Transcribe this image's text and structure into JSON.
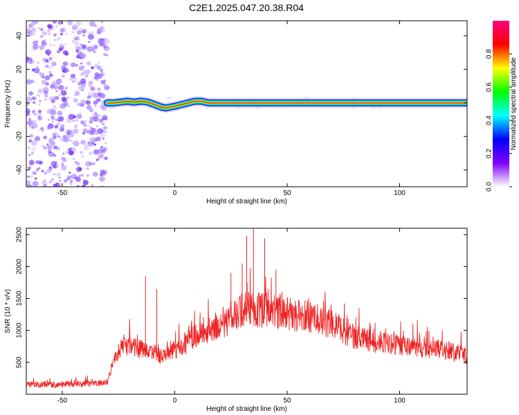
{
  "figure": {
    "title": "C2E1.2025.047.20.38.R04"
  },
  "chart_data": [
    {
      "type": "heatmap",
      "title": "C2E1.2025.047.20.38.R04",
      "xlabel": "Height of straight line (km)",
      "ylabel": "Frequency (Hz)",
      "xlim": [
        -66,
        130
      ],
      "ylim": [
        -50,
        49
      ],
      "x_ticks": [
        -50,
        0,
        50,
        100
      ],
      "y_ticks": [
        -40,
        -20,
        0,
        20,
        40
      ],
      "noise_region_x": [
        -66,
        -30
      ],
      "signal_trace": [
        {
          "x": -30,
          "y": 0
        },
        {
          "x": -27,
          "y": 0
        },
        {
          "x": -24,
          "y": 0.5
        },
        {
          "x": -21,
          "y": 1
        },
        {
          "x": -18,
          "y": 0.5
        },
        {
          "x": -15,
          "y": 1
        },
        {
          "x": -12,
          "y": 0.5
        },
        {
          "x": -9,
          "y": -1
        },
        {
          "x": -6,
          "y": -2.5
        },
        {
          "x": -4,
          "y": -3
        },
        {
          "x": 0,
          "y": -2
        },
        {
          "x": 3,
          "y": -1
        },
        {
          "x": 6,
          "y": 0
        },
        {
          "x": 9,
          "y": 1
        },
        {
          "x": 12,
          "y": 1
        },
        {
          "x": 15,
          "y": 0
        },
        {
          "x": 130,
          "y": 0
        }
      ],
      "colorbar": {
        "label": "Normalized spectral amplitude",
        "range": [
          0,
          1
        ],
        "ticks": [
          "0.0",
          "0.2",
          "0.4",
          "0.6",
          "0.8"
        ],
        "colors": [
          "#ffffff",
          "#8000ff",
          "#0000ff",
          "#00ffff",
          "#00ff00",
          "#ffff00",
          "#ff0000",
          "#ff0080"
        ]
      }
    },
    {
      "type": "line",
      "xlabel": "Height of straight line (km)",
      "ylabel": "SNR (10 * v/v)",
      "xlim": [
        -66,
        130
      ],
      "ylim": [
        0,
        2600
      ],
      "x_ticks": [
        -50,
        0,
        50,
        100
      ],
      "y_ticks": [
        500,
        1000,
        1500,
        2000,
        2500
      ],
      "color": "#ee2222",
      "series": [
        {
          "x": [
            -66,
            -55,
            -45,
            -35,
            -30,
            -29,
            -25,
            -20,
            -15,
            -10,
            -5,
            0,
            5,
            10,
            15,
            20,
            25,
            30,
            35,
            40,
            45,
            50,
            55,
            60,
            65,
            70,
            75,
            80,
            85,
            90,
            95,
            100,
            105,
            110,
            115,
            120,
            125,
            130
          ],
          "y": [
            150,
            150,
            160,
            170,
            180,
            300,
            700,
            800,
            700,
            650,
            600,
            700,
            800,
            950,
            1000,
            1100,
            1200,
            1300,
            1350,
            1320,
            1300,
            1250,
            1250,
            1200,
            1150,
            1100,
            1000,
            900,
            850,
            820,
            800,
            780,
            750,
            720,
            700,
            680,
            650,
            600
          ],
          "peaks": [
            {
              "x": 35,
              "y": 2600
            },
            {
              "x": 32,
              "y": 2480
            },
            {
              "x": 40,
              "y": 2440
            },
            {
              "x": -13,
              "y": 1850
            },
            {
              "x": 45,
              "y": 1950
            },
            {
              "x": 30,
              "y": 2050
            },
            {
              "x": 25,
              "y": 1900
            },
            {
              "x": -8,
              "y": 1650
            }
          ]
        }
      ]
    }
  ]
}
